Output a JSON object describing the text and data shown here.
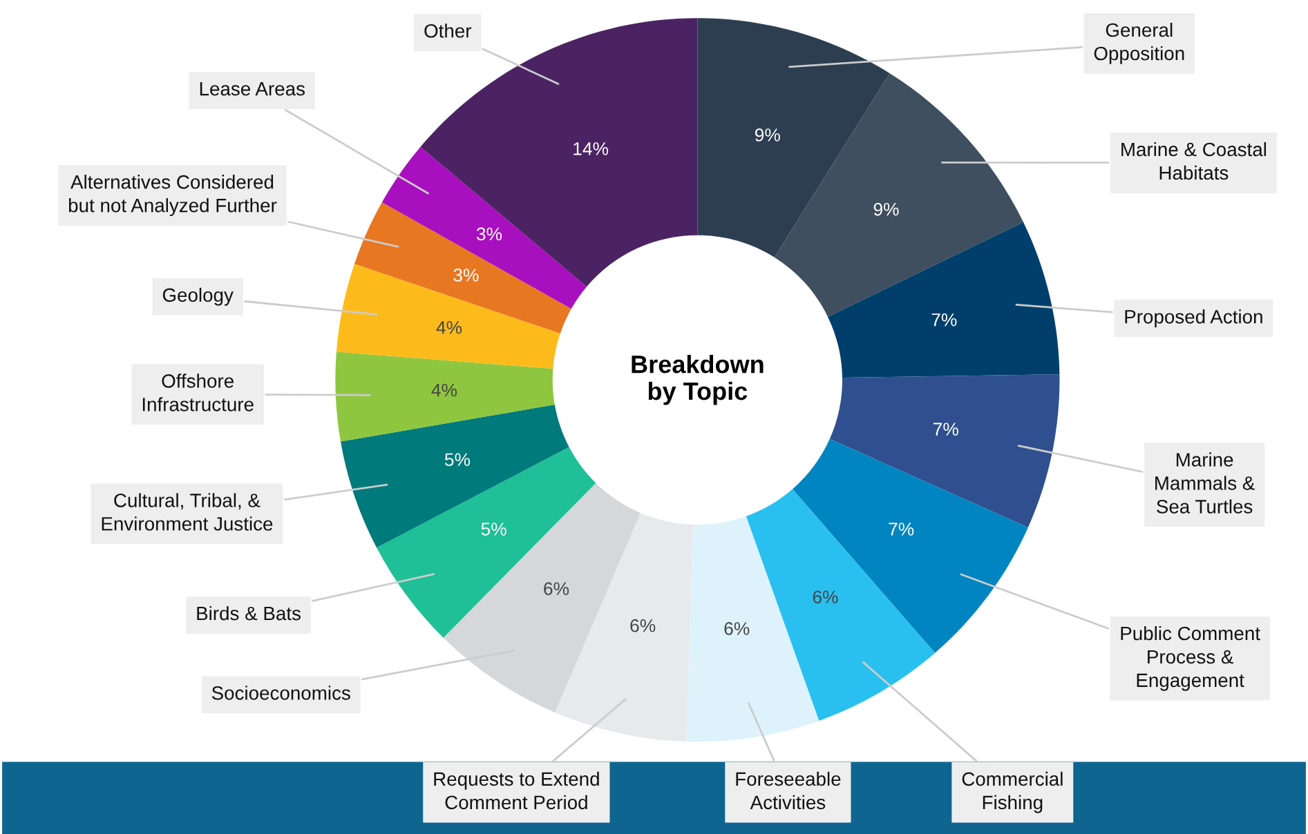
{
  "chart_data": {
    "type": "donut",
    "title": "Breakdown by Topic",
    "categories": [
      "General\nOpposition",
      "Marine & Coastal\nHabitats",
      "Proposed Action",
      "Marine\nMammals &\nSea Turtles",
      "Public Comment\nProcess &\nEngagement",
      "Commercial\nFishing",
      "Foreseeable\nActivities",
      "Requests to Extend\nComment Period",
      "Socioeconomics",
      "Birds & Bats",
      "Cultural, Tribal, &\nEnvironment Justice",
      "Offshore\nInfrastructure",
      "Geology",
      "Alternatives Considered\nbut not Analyzed Further",
      "Lease Areas",
      "Other"
    ],
    "values": [
      9,
      9,
      7,
      7,
      7,
      6,
      6,
      6,
      6,
      5,
      5,
      4,
      4,
      3,
      3,
      14
    ],
    "colors": [
      "#2d3e50",
      "#3f4f5f",
      "#003f6b",
      "#2f4f8f",
      "#0085c0",
      "#29c0ef",
      "#ddf2fb",
      "#e8e9ec",
      "#d5d7db",
      "#1fbf97",
      "#007a7a",
      "#8fc63f",
      "#fdbb1b",
      "#e87722",
      "#a80fbe",
      "#4c2362"
    ],
    "value_labels": [
      "9%",
      "9%",
      "7%",
      "7%",
      "7%",
      "6%",
      "6%",
      "6%",
      "6%",
      "5%",
      "5%",
      "4%",
      "4%",
      "3%",
      "3%",
      "14%"
    ],
    "legend": false
  }
}
